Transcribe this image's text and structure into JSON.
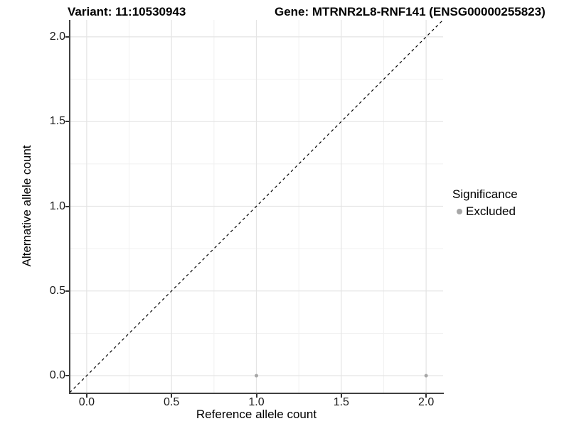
{
  "titles": {
    "variant": "Variant: 11:10530943",
    "gene": "Gene: MTRNR2L8-RNF141 (ENSG00000255823)"
  },
  "axes": {
    "x": {
      "label": "Reference allele count",
      "tick_labels": [
        "0.0",
        "0.5",
        "1.0",
        "1.5",
        "2.0"
      ]
    },
    "y": {
      "label": "Alternative allele count",
      "tick_labels": [
        "0.0",
        "0.5",
        "1.0",
        "1.5",
        "2.0"
      ]
    }
  },
  "legend": {
    "title": "Significance",
    "items": [
      {
        "label": "Excluded",
        "color": "#a7a7a7"
      }
    ]
  },
  "chart_data": {
    "type": "scatter",
    "title_left": "Variant: 11:10530943",
    "title_right": "Gene: MTRNR2L8-RNF141 (ENSG00000255823)",
    "xlabel": "Reference allele count",
    "ylabel": "Alternative allele count",
    "xlim": [
      -0.1,
      2.1
    ],
    "ylim": [
      -0.1,
      2.1
    ],
    "x_major_ticks": [
      0,
      0.5,
      1.0,
      1.5,
      2.0
    ],
    "y_major_ticks": [
      0,
      0.5,
      1.0,
      1.5,
      2.0
    ],
    "x_minor_gridlines": [
      0.25,
      0.75,
      1.25,
      1.75
    ],
    "y_minor_gridlines": [
      0.25,
      0.75,
      1.25,
      1.75
    ],
    "grid": "major+minor",
    "legend_position": "right",
    "series": [
      {
        "name": "Excluded",
        "color": "#a7a7a7",
        "marker": "circle",
        "marker_radius": 2.5,
        "points": [
          {
            "x": 1.0,
            "y": 0.0
          },
          {
            "x": 2.0,
            "y": 0.0
          }
        ]
      }
    ],
    "identity_line": {
      "style": "dashed",
      "color": "#000000",
      "from": [
        -0.1,
        -0.1
      ],
      "to": [
        2.1,
        2.1
      ]
    }
  },
  "colors": {
    "background": "#ffffff",
    "axis_line": "#404040",
    "grid_major": "#e4e4e4",
    "grid_minor": "#f1f1f1",
    "point": "#a7a7a7",
    "tick_text": "#1a1a1a",
    "title_text": "#000000"
  }
}
